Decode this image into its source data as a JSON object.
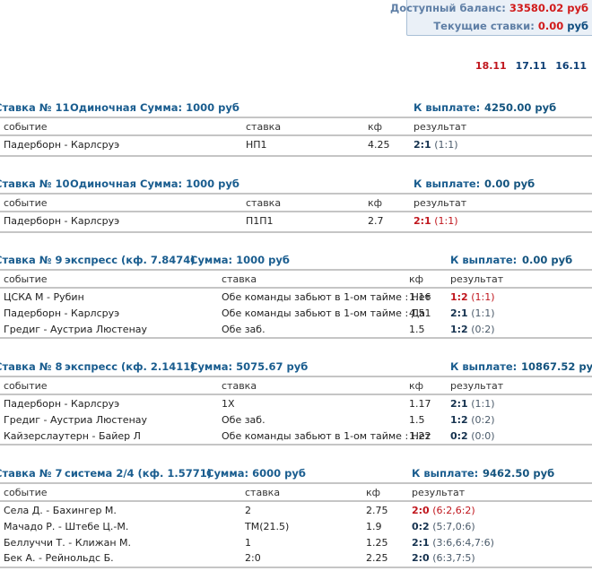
{
  "balance": {
    "available_label": "Доступный баланс:",
    "available_value": "33580.02",
    "currency": "руб",
    "current_bets_label": "Текущие ставки:",
    "current_bets_value": "0.00",
    "currency2": "руб"
  },
  "dates": [
    "18.11",
    "17.11",
    "16.11"
  ],
  "columns": {
    "event": "событие",
    "stake": "ставка",
    "kf": "кф",
    "result": "результат"
  },
  "bets": [
    {
      "title": "Ставка № 11",
      "type": "Одиночная",
      "sum": "Сумма: 1000 руб",
      "payout_label": "К выплате:",
      "payout_value": "4250.00 руб",
      "rows": [
        {
          "event": "Падерборн - Карлсруэ",
          "stake": "НП1",
          "kf": "4.25",
          "score": "2:1",
          "half": "(1:1)",
          "status": "won"
        }
      ]
    },
    {
      "title": "Ставка № 10",
      "type": "Одиночная",
      "sum": "Сумма: 1000 руб",
      "payout_label": "К выплате:",
      "payout_value": "0.00 руб",
      "rows": [
        {
          "event": "Падерборн - Карлсруэ",
          "stake": "П1П1",
          "kf": "2.7",
          "score": "2:1",
          "half": "(1:1)",
          "status": "lost"
        }
      ]
    },
    {
      "title": "Ставка № 9",
      "type": "экспресс  (кф. 7.8474)",
      "sum": "Сумма: 1000 руб",
      "payout_label": "К выплате:",
      "payout_value": "0.00 руб",
      "rows": [
        {
          "event": "ЦСКА М - Рубин",
          "stake": "Обе команды забьют в 1-ом тайме : Нет",
          "kf": "1.16",
          "score": "1:2",
          "half": "(1:1)",
          "status": "lost"
        },
        {
          "event": "Падерборн - Карлсруэ",
          "stake": "Обе команды забьют в 1-ом тайме : Да",
          "kf": "4.51",
          "score": "2:1",
          "half": "(1:1)",
          "status": "won"
        },
        {
          "event": "Гредиг - Аустриа Люстенау",
          "stake": "Обе заб.",
          "kf": "1.5",
          "score": "1:2",
          "half": "(0:2)",
          "status": "won"
        }
      ]
    },
    {
      "title": "Ставка № 8",
      "type": "экспресс  (кф. 2.1411)",
      "sum": "Сумма: 5075.67 руб",
      "payout_label": "К выплате:",
      "payout_value": "10867.52 руб",
      "rows": [
        {
          "event": "Падерборн - Карлсруэ",
          "stake": "1Х",
          "kf": "1.17",
          "score": "2:1",
          "half": "(1:1)",
          "status": "won"
        },
        {
          "event": "Гредиг - Аустриа Люстенау",
          "stake": "Обе заб.",
          "kf": "1.5",
          "score": "1:2",
          "half": "(0:2)",
          "status": "won"
        },
        {
          "event": "Кайзерслаутерн - Байер Л",
          "stake": "Обе команды забьют в 1-ом тайме : Нет",
          "kf": "1.22",
          "score": "0:2",
          "half": "(0:0)",
          "status": "won"
        }
      ]
    },
    {
      "title": "Ставка № 7",
      "type": "система 2/4  (кф. 1.5771)",
      "sum": "Сумма: 6000 руб",
      "payout_label": "К выплате:",
      "payout_value": "9462.50 руб",
      "rows": [
        {
          "event": "Села Д. - Бахингер М.",
          "stake": "2",
          "kf": "2.75",
          "score": "2:0",
          "half": "(6:2,6:2)",
          "status": "lost"
        },
        {
          "event": "Мачадо Р. - Штебе Ц.-М.",
          "stake": "ТМ(21.5)",
          "kf": "1.9",
          "score": "0:2",
          "half": "(5:7,0:6)",
          "status": "won"
        },
        {
          "event": "Беллуччи Т. - Клижан М.",
          "stake": "1",
          "kf": "1.25",
          "score": "2:1",
          "half": "(3:6,6:4,7:6)",
          "status": "won"
        },
        {
          "event": "Бек А. - Рейнольдс Б.",
          "stake": "2:0",
          "kf": "2.25",
          "score": "2:0",
          "half": "(6:3,7:5)",
          "status": "won"
        }
      ]
    }
  ]
}
